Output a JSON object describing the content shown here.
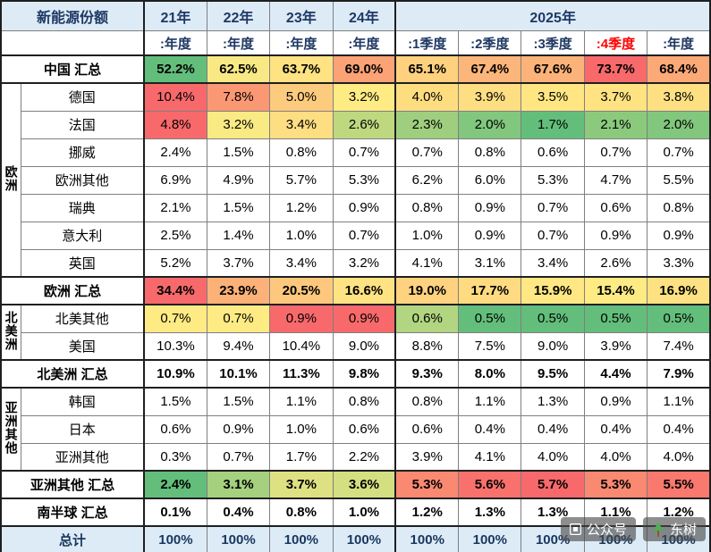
{
  "chart_data": {
    "type": "table",
    "title": "新能源份额",
    "column_groups": [
      {
        "label": "21年",
        "span": 1
      },
      {
        "label": "22年",
        "span": 1
      },
      {
        "label": "23年",
        "span": 1
      },
      {
        "label": "24年",
        "span": 1
      },
      {
        "label": "2025年",
        "span": 5
      }
    ],
    "columns": [
      ":年度",
      ":年度",
      ":年度",
      ":年度",
      ":1季度",
      ":2季度",
      ":3季度",
      ":4季度",
      ":年度"
    ],
    "highlight_column_index": 7,
    "row_groups": [
      {
        "name": "欧洲",
        "start": 1,
        "span": 7
      },
      {
        "name": "北美洲",
        "start": 9,
        "span": 2
      },
      {
        "name": "亚洲其他",
        "start": 12,
        "span": 3
      }
    ],
    "rows": [
      {
        "label": "中国 汇总",
        "kind": "summary",
        "heat": "gyr",
        "values": [
          "52.2%",
          "62.5%",
          "63.7%",
          "69.0%",
          "65.1%",
          "67.4%",
          "67.6%",
          "73.7%",
          "68.4%"
        ]
      },
      {
        "label": "德国",
        "kind": "country",
        "heat": "yr",
        "values": [
          "10.4%",
          "7.8%",
          "5.0%",
          "3.2%",
          "4.0%",
          "3.9%",
          "3.5%",
          "3.7%",
          "3.8%"
        ]
      },
      {
        "label": "法国",
        "kind": "country",
        "heat": "gyr",
        "values": [
          "4.8%",
          "3.2%",
          "3.4%",
          "2.6%",
          "2.3%",
          "2.0%",
          "1.7%",
          "2.1%",
          "2.0%"
        ]
      },
      {
        "label": "挪威",
        "kind": "country",
        "heat": null,
        "values": [
          "2.4%",
          "1.5%",
          "0.8%",
          "0.7%",
          "0.7%",
          "0.8%",
          "0.6%",
          "0.7%",
          "0.7%"
        ]
      },
      {
        "label": "欧洲其他",
        "kind": "country",
        "heat": null,
        "values": [
          "6.9%",
          "4.9%",
          "5.7%",
          "5.3%",
          "6.2%",
          "6.0%",
          "5.3%",
          "4.7%",
          "5.5%"
        ]
      },
      {
        "label": "瑞典",
        "kind": "country",
        "heat": null,
        "values": [
          "2.1%",
          "1.5%",
          "1.2%",
          "0.9%",
          "0.8%",
          "0.9%",
          "0.7%",
          "0.6%",
          "0.8%"
        ]
      },
      {
        "label": "意大利",
        "kind": "country",
        "heat": null,
        "values": [
          "2.5%",
          "1.4%",
          "1.0%",
          "0.7%",
          "1.0%",
          "0.9%",
          "0.7%",
          "0.9%",
          "0.9%"
        ]
      },
      {
        "label": "英国",
        "kind": "country",
        "heat": null,
        "values": [
          "5.2%",
          "3.7%",
          "3.4%",
          "3.2%",
          "4.1%",
          "3.1%",
          "3.4%",
          "2.6%",
          "3.3%"
        ]
      },
      {
        "label": "欧洲 汇总",
        "kind": "summary",
        "heat": "yr",
        "values": [
          "34.4%",
          "23.9%",
          "20.5%",
          "16.6%",
          "19.0%",
          "17.7%",
          "15.9%",
          "15.4%",
          "16.9%"
        ]
      },
      {
        "label": "北美其他",
        "kind": "country",
        "heat": "gyr",
        "values": [
          "0.7%",
          "0.7%",
          "0.9%",
          "0.9%",
          "0.6%",
          "0.5%",
          "0.5%",
          "0.5%",
          "0.5%"
        ]
      },
      {
        "label": "美国",
        "kind": "country",
        "heat": null,
        "values": [
          "10.3%",
          "9.4%",
          "10.4%",
          "9.0%",
          "8.8%",
          "7.5%",
          "9.0%",
          "3.9%",
          "7.4%"
        ]
      },
      {
        "label": "北美洲 汇总",
        "kind": "summary",
        "heat": null,
        "values": [
          "10.9%",
          "10.1%",
          "11.3%",
          "9.8%",
          "9.3%",
          "8.0%",
          "9.5%",
          "4.4%",
          "7.9%"
        ]
      },
      {
        "label": "韩国",
        "kind": "country",
        "heat": null,
        "values": [
          "1.5%",
          "1.5%",
          "1.1%",
          "0.8%",
          "0.8%",
          "1.1%",
          "1.3%",
          "0.9%",
          "1.1%"
        ]
      },
      {
        "label": "日本",
        "kind": "country",
        "heat": null,
        "values": [
          "0.6%",
          "0.9%",
          "1.0%",
          "0.6%",
          "0.6%",
          "0.4%",
          "0.4%",
          "0.4%",
          "0.4%"
        ]
      },
      {
        "label": "亚洲其他",
        "kind": "country",
        "heat": null,
        "values": [
          "0.3%",
          "0.7%",
          "1.7%",
          "2.2%",
          "3.9%",
          "4.1%",
          "4.0%",
          "4.0%",
          "4.0%"
        ]
      },
      {
        "label": "亚洲其他 汇总",
        "kind": "summary",
        "heat": "gyr",
        "values": [
          "2.4%",
          "3.1%",
          "3.7%",
          "3.6%",
          "5.3%",
          "5.6%",
          "5.7%",
          "5.3%",
          "5.5%"
        ]
      },
      {
        "label": "南半球 汇总",
        "kind": "summary",
        "heat": null,
        "values": [
          "0.1%",
          "0.4%",
          "0.8%",
          "1.0%",
          "1.2%",
          "1.3%",
          "1.3%",
          "1.1%",
          "1.2%"
        ]
      },
      {
        "label": "总计",
        "kind": "total",
        "heat": null,
        "values": [
          "100%",
          "100%",
          "100%",
          "100%",
          "100%",
          "100%",
          "100%",
          "100%",
          "100%"
        ]
      }
    ]
  },
  "colors": {
    "header_bg": "#DDEBF7",
    "header_text": "#1F3864",
    "highlight_red": "#FF0000",
    "grid_line": "#7F7F7F",
    "block_line": "#1F1F1F",
    "scale_green": "#63BE7B",
    "scale_yellow": "#FFEB84",
    "scale_red": "#F8696B",
    "total_row_bg": "#DDEBF7"
  },
  "watermark": {
    "label_1": "公众号",
    "label_2": "东树"
  }
}
